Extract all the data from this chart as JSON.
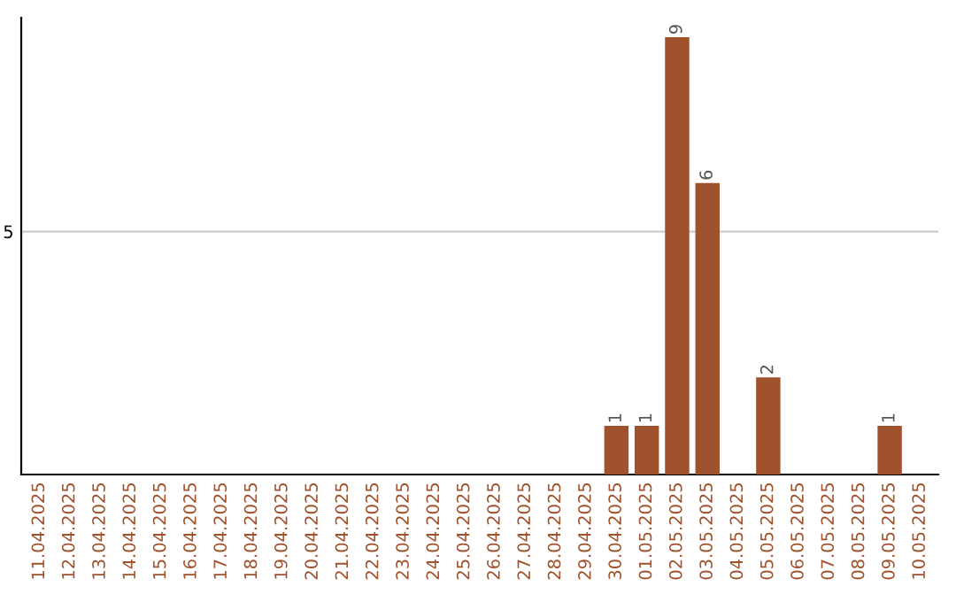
{
  "chart_data": {
    "type": "bar",
    "categories": [
      "11.04.2025",
      "12.04.2025",
      "13.04.2025",
      "14.04.2025",
      "15.04.2025",
      "16.04.2025",
      "17.04.2025",
      "18.04.2025",
      "19.04.2025",
      "20.04.2025",
      "21.04.2025",
      "22.04.2025",
      "23.04.2025",
      "24.04.2025",
      "25.04.2025",
      "26.04.2025",
      "27.04.2025",
      "28.04.2025",
      "29.04.2025",
      "30.04.2025",
      "01.05.2025",
      "02.05.2025",
      "03.05.2025",
      "04.05.2025",
      "05.05.2025",
      "06.05.2025",
      "07.05.2025",
      "08.05.2025",
      "09.05.2025",
      "10.05.2025"
    ],
    "values": [
      null,
      null,
      null,
      null,
      null,
      null,
      null,
      null,
      null,
      null,
      null,
      null,
      null,
      null,
      null,
      null,
      null,
      null,
      null,
      1,
      1,
      9,
      6,
      null,
      2,
      null,
      null,
      null,
      1,
      null
    ],
    "data_labels": true,
    "color": "#a0522d",
    "ylim": [
      0,
      9.4
    ],
    "yticks": [
      5
    ],
    "grid": "y"
  }
}
